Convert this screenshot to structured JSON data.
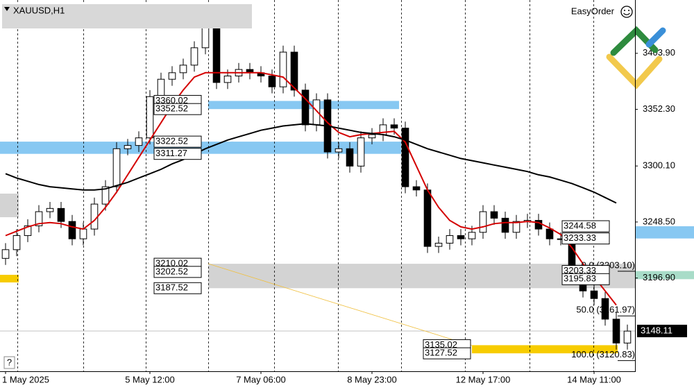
{
  "chart_data": {
    "type": "candlestick",
    "title": "XAUUSD,H1",
    "toolbar_label": "EasyOrder",
    "help_button": "?",
    "categories": [
      "1 May 2025",
      null,
      null,
      null,
      null,
      null,
      null,
      null,
      null,
      null,
      null,
      null,
      null,
      "5 May 12:00",
      null,
      null,
      null,
      null,
      null,
      null,
      null,
      null,
      null,
      "7 May 06:00",
      null,
      null,
      null,
      null,
      null,
      null,
      null,
      null,
      null,
      "8 May 23:00",
      null,
      null,
      null,
      null,
      null,
      null,
      null,
      null,
      null,
      "12 May 17:00",
      null,
      null,
      null,
      null,
      null,
      null,
      null,
      null,
      null,
      "14 May 11:00",
      null,
      null,
      null
    ],
    "open": [
      3215,
      3223,
      3236,
      3245,
      3258,
      3261,
      3249,
      3233,
      3242,
      3265,
      3281,
      3316,
      3319,
      3326,
      3364,
      3380,
      3386,
      3393,
      3409,
      3428,
      3377,
      3383,
      3389,
      3386,
      3383,
      3373,
      3405,
      3370,
      3338,
      3361,
      3313,
      3316,
      3300,
      3326,
      3329,
      3338,
      3335,
      3281,
      3278,
      3226,
      3229,
      3236,
      3233,
      3239,
      3258,
      3252,
      3239,
      3249,
      3250,
      3242,
      3233,
      3233,
      3204,
      3185,
      3178,
      3159,
      3137
    ],
    "high": [
      3229,
      3242,
      3251,
      3264,
      3267,
      3267,
      3255,
      3248,
      3271,
      3287,
      3322,
      3325,
      3332,
      3370,
      3386,
      3392,
      3399,
      3415,
      3434,
      3434,
      3389,
      3395,
      3395,
      3392,
      3389,
      3411,
      3411,
      3376,
      3367,
      3367,
      3322,
      3322,
      3332,
      3335,
      3344,
      3344,
      3341,
      3287,
      3284,
      3235,
      3242,
      3242,
      3245,
      3264,
      3264,
      3258,
      3255,
      3256,
      3256,
      3248,
      3239,
      3239,
      3210,
      3191,
      3184,
      3165,
      3154
    ],
    "low": [
      3209,
      3217,
      3230,
      3239,
      3252,
      3243,
      3227,
      3227,
      3236,
      3259,
      3275,
      3310,
      3313,
      3320,
      3358,
      3374,
      3380,
      3387,
      3403,
      3371,
      3371,
      3377,
      3380,
      3377,
      3367,
      3367,
      3364,
      3332,
      3332,
      3307,
      3307,
      3294,
      3294,
      3320,
      3323,
      3329,
      3275,
      3272,
      3220,
      3220,
      3223,
      3227,
      3227,
      3233,
      3246,
      3233,
      3233,
      3243,
      3236,
      3227,
      3227,
      3198,
      3179,
      3172,
      3153,
      3131,
      3131
    ],
    "close": [
      3223,
      3236,
      3245,
      3258,
      3261,
      3249,
      3233,
      3242,
      3265,
      3281,
      3316,
      3319,
      3326,
      3364,
      3380,
      3386,
      3393,
      3409,
      3428,
      3377,
      3383,
      3389,
      3386,
      3383,
      3373,
      3405,
      3370,
      3338,
      3361,
      3313,
      3316,
      3300,
      3326,
      3329,
      3338,
      3335,
      3281,
      3278,
      3226,
      3229,
      3236,
      3233,
      3239,
      3258,
      3252,
      3239,
      3249,
      3250,
      3242,
      3233,
      3233,
      3204,
      3185,
      3178,
      3159,
      3137,
      3148
    ],
    "series": [
      {
        "color": "#d40000",
        "values": [
          3236,
          3240,
          3244,
          3247,
          3248,
          3247,
          3244,
          3242,
          3250,
          3262,
          3276,
          3292,
          3308,
          3324,
          3340,
          3356,
          3370,
          3382,
          3386,
          3386,
          3386,
          3386,
          3386,
          3386,
          3384,
          3382,
          3372,
          3362,
          3351,
          3340,
          3331,
          3327,
          3329,
          3330,
          3331,
          3332,
          3322,
          3300,
          3278,
          3262,
          3250,
          3244,
          3242,
          3244,
          3247,
          3248,
          3248,
          3249,
          3248,
          3243,
          3237,
          3225,
          3210,
          3198,
          3185,
          3172,
          null
        ]
      },
      {
        "color": "#000000",
        "values": [
          3293,
          3289,
          3286,
          3283,
          3281,
          3280,
          3279,
          3278,
          3278,
          3279,
          3282,
          3285,
          3289,
          3293,
          3297,
          3302,
          3306,
          3311,
          3316,
          3320,
          3324,
          3327,
          3330,
          3333,
          3335,
          3337,
          3338,
          3339,
          3338,
          3337,
          3335,
          3333,
          3331,
          3330,
          3329,
          3327,
          3324,
          3320,
          3316,
          3313,
          3310,
          3307,
          3305,
          3303,
          3301,
          3299,
          3297,
          3295,
          3292,
          3290,
          3287,
          3284,
          3280,
          3276,
          3271,
          3266,
          null
        ]
      }
    ],
    "ylim": [
      3111,
      3453
    ],
    "yticks": [
      {
        "value": 3196.9,
        "label": "3196.90"
      },
      {
        "value": 3248.5,
        "label": "3248.50"
      },
      {
        "value": 3300.1,
        "label": "3300.10"
      },
      {
        "value": 3352.3,
        "label": "3352.30"
      },
      {
        "value": 3403.9,
        "label": "3403.90"
      }
    ],
    "last_price": 3148.11,
    "zones": [
      {
        "color": "#87c8f2",
        "upper": 3360.02,
        "lower": 3352.52
      },
      {
        "color": "#87c8f2",
        "upper": 3322.52,
        "lower": 3311.27
      },
      {
        "color": "#d3d3d3",
        "upper": 3210.02,
        "middle": 3202.52,
        "lower": 3187.52
      },
      {
        "color": "#f7cc00",
        "upper": 3135.02,
        "lower": 3127.52
      },
      {
        "color": "#87c8f2",
        "upper": 3244.58,
        "lower": 3233.33
      },
      {
        "color": "#a8dcc8",
        "upper": 3203.33,
        "lower": 3195.83
      }
    ],
    "fib_levels": [
      {
        "level": 0.0,
        "price": 3203.1,
        "label": "0.0 (3203.10)"
      },
      {
        "level": 50.0,
        "price": 3161.97,
        "label": "50.0 (3161.97)"
      },
      {
        "level": 100.0,
        "price": 3120.83,
        "label": "100.0 (3120.83)"
      }
    ]
  }
}
